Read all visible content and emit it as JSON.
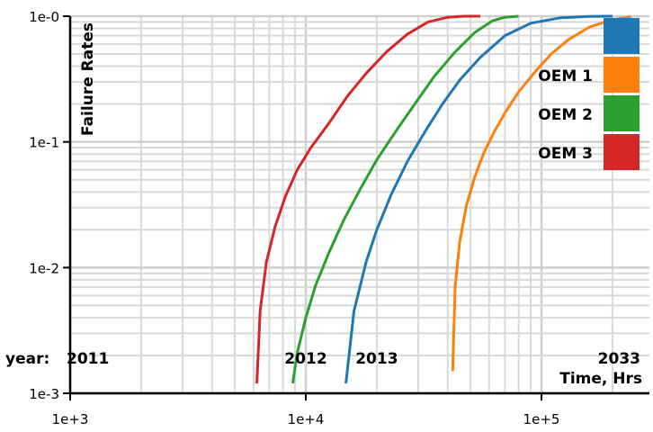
{
  "chart_data": {
    "type": "line",
    "xlabel": "Time, Hrs",
    "ylabel": "Failure Rates",
    "x_scale": "log",
    "y_scale": "log",
    "xlim": [
      1000,
      250000
    ],
    "ylim": [
      0.001,
      1
    ],
    "x_ticks": [
      {
        "value": 1000,
        "label": "1e+3"
      },
      {
        "value": 10000,
        "label": "1e+4"
      },
      {
        "value": 100000,
        "label": "1e+5"
      }
    ],
    "y_ticks": [
      {
        "value": 1,
        "label": "1e-0"
      },
      {
        "value": 0.1,
        "label": "1e-1"
      },
      {
        "value": 0.01,
        "label": "1e-2"
      },
      {
        "value": 0.001,
        "label": "1e-3"
      }
    ],
    "grid": true,
    "legend_position": "right",
    "legend_entries": [
      {
        "label": "",
        "color": "#1f77b4"
      },
      {
        "label": "OEM 1",
        "color": "#ff7f0e"
      },
      {
        "label": "OEM 2",
        "color": "#2ca02c"
      },
      {
        "label": "OEM 3",
        "color": "#d62728"
      }
    ],
    "year_prefix": "year:",
    "year_annotations": [
      {
        "label": "2011",
        "x": 1300
      },
      {
        "label": "2012",
        "x": 10000
      },
      {
        "label": "2013",
        "x": 20000
      },
      {
        "label": "2033",
        "x": 240000
      }
    ],
    "series": [
      {
        "color": "#1f77b4",
        "x": [
          14800,
          16000,
          18000,
          20000,
          23000,
          27000,
          32000,
          38000,
          45000,
          55000,
          70000,
          90000,
          120000,
          160000,
          200000
        ],
        "y": [
          0.0012,
          0.0045,
          0.011,
          0.02,
          0.038,
          0.07,
          0.12,
          0.2,
          0.31,
          0.47,
          0.7,
          0.88,
          0.97,
          0.995,
          1.0
        ]
      },
      {
        "color": "#ff7f0e",
        "x": [
          42000,
          43000,
          45000,
          48000,
          52000,
          57000,
          63000,
          70000,
          80000,
          95000,
          110000,
          130000,
          160000,
          200000,
          240000
        ],
        "y": [
          0.0015,
          0.007,
          0.016,
          0.031,
          0.052,
          0.082,
          0.12,
          0.17,
          0.25,
          0.37,
          0.5,
          0.65,
          0.82,
          0.94,
          0.99
        ]
      },
      {
        "color": "#2ca02c",
        "x": [
          8800,
          9200,
          10000,
          11000,
          12500,
          14500,
          17000,
          20000,
          24000,
          29000,
          35000,
          43000,
          52000,
          62000,
          70000,
          80000
        ],
        "y": [
          0.0012,
          0.0021,
          0.004,
          0.0072,
          0.013,
          0.024,
          0.042,
          0.072,
          0.12,
          0.2,
          0.33,
          0.52,
          0.74,
          0.92,
          0.98,
          1.0
        ]
      },
      {
        "color": "#d62728",
        "x": [
          6200,
          6400,
          6800,
          7400,
          8200,
          9200,
          10500,
          12500,
          15000,
          18000,
          22000,
          27000,
          33000,
          40000,
          47000,
          55000
        ],
        "y": [
          0.0012,
          0.0045,
          0.011,
          0.021,
          0.037,
          0.06,
          0.09,
          0.14,
          0.23,
          0.35,
          0.52,
          0.72,
          0.9,
          0.98,
          1.0,
          1.0
        ]
      }
    ]
  }
}
